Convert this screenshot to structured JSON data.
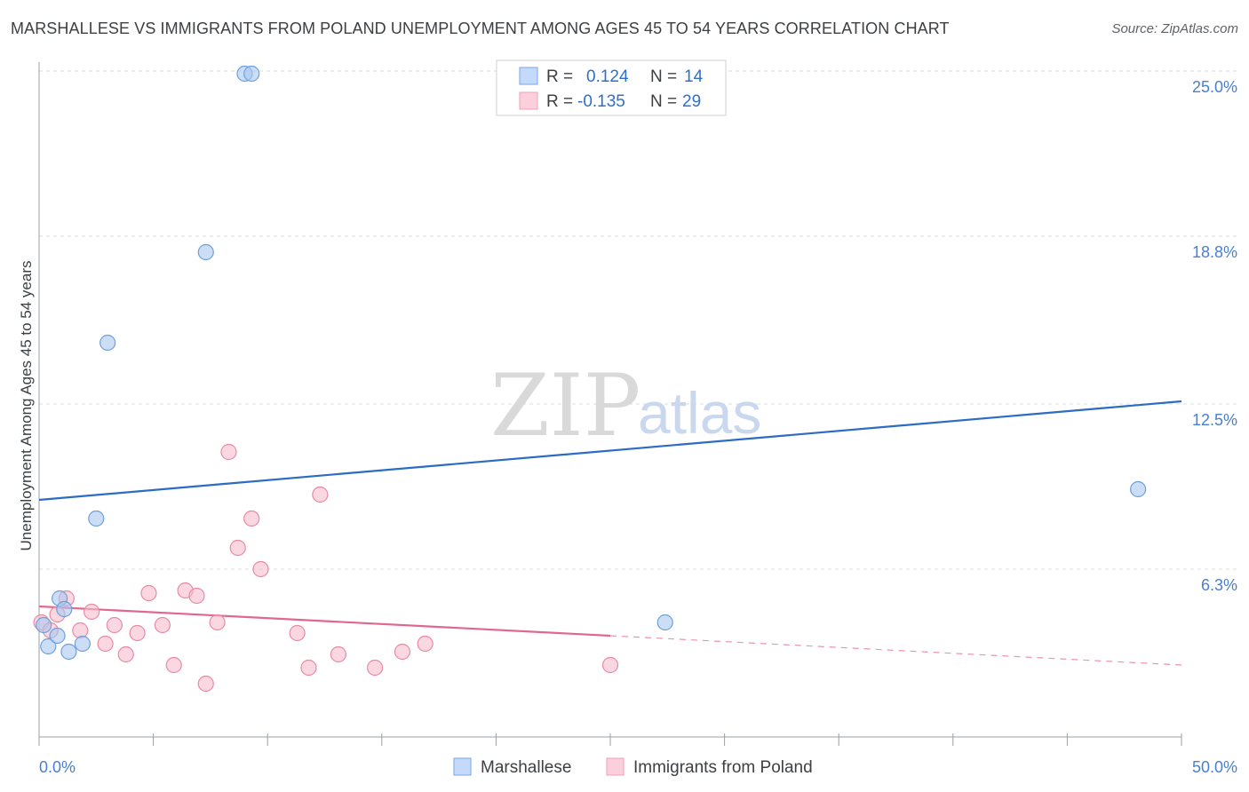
{
  "title": "MARSHALLESE VS IMMIGRANTS FROM POLAND UNEMPLOYMENT AMONG AGES 45 TO 54 YEARS CORRELATION CHART",
  "source": "Source: ZipAtlas.com",
  "watermark": {
    "part1": "ZIP",
    "part2": "atlas"
  },
  "legend": {
    "r_label": "R =",
    "n_label": "N =",
    "rows": [
      {
        "r": "0.124",
        "n": "14"
      },
      {
        "r": "-0.135",
        "n": "29"
      }
    ]
  },
  "chart_data": {
    "type": "scatter",
    "title": "MARSHALLESE VS IMMIGRANTS FROM POLAND UNEMPLOYMENT AMONG AGES 45 TO 54 YEARS CORRELATION CHART",
    "xlabel": "",
    "ylabel": "Unemployment Among Ages 45 to 54 years",
    "xlim": [
      0,
      50
    ],
    "ylim": [
      0,
      25
    ],
    "x_tick_labels": [
      "0.0%",
      "50.0%"
    ],
    "y_ticks": [
      6.3,
      12.5,
      18.8,
      25.0
    ],
    "y_tick_labels": [
      "6.3%",
      "12.5%",
      "18.8%",
      "25.0%"
    ],
    "grid": true,
    "legend_position": "top-center",
    "series": [
      {
        "name": "Marshallese",
        "color": "#a8c8f0",
        "stroke": "#6f9fd8",
        "trend_color": "#2b6cc4",
        "r": 0.124,
        "n": 14,
        "trend": {
          "x": [
            0,
            50
          ],
          "y": [
            8.9,
            12.6
          ]
        },
        "points": [
          {
            "x": 0.2,
            "y": 4.2
          },
          {
            "x": 0.4,
            "y": 3.4
          },
          {
            "x": 0.8,
            "y": 3.8
          },
          {
            "x": 0.9,
            "y": 5.2
          },
          {
            "x": 1.1,
            "y": 4.8
          },
          {
            "x": 1.3,
            "y": 3.2
          },
          {
            "x": 1.9,
            "y": 3.5
          },
          {
            "x": 2.5,
            "y": 8.2
          },
          {
            "x": 3.0,
            "y": 14.8
          },
          {
            "x": 7.3,
            "y": 18.2
          },
          {
            "x": 9.0,
            "y": 24.9
          },
          {
            "x": 9.3,
            "y": 24.9
          },
          {
            "x": 27.4,
            "y": 4.3
          },
          {
            "x": 48.1,
            "y": 9.3
          }
        ]
      },
      {
        "name": "Immigrants from Poland",
        "color": "#f7bccd",
        "stroke": "#e88aa6",
        "trend_color": "#e06890",
        "r": -0.135,
        "n": 29,
        "trend": {
          "x": [
            0,
            25
          ],
          "y": [
            4.9,
            3.8
          ]
        },
        "trend_dashed": {
          "x": [
            25,
            50
          ],
          "y": [
            3.8,
            2.7
          ]
        },
        "points": [
          {
            "x": 0.1,
            "y": 4.3
          },
          {
            "x": 0.5,
            "y": 4.0
          },
          {
            "x": 0.8,
            "y": 4.6
          },
          {
            "x": 1.2,
            "y": 5.2
          },
          {
            "x": 1.8,
            "y": 4.0
          },
          {
            "x": 2.3,
            "y": 4.7
          },
          {
            "x": 2.9,
            "y": 3.5
          },
          {
            "x": 3.3,
            "y": 4.2
          },
          {
            "x": 3.8,
            "y": 3.1
          },
          {
            "x": 4.3,
            "y": 3.9
          },
          {
            "x": 4.8,
            "y": 5.4
          },
          {
            "x": 5.4,
            "y": 4.2
          },
          {
            "x": 5.9,
            "y": 2.7
          },
          {
            "x": 6.4,
            "y": 5.5
          },
          {
            "x": 6.9,
            "y": 5.3
          },
          {
            "x": 7.3,
            "y": 2.0
          },
          {
            "x": 7.8,
            "y": 4.3
          },
          {
            "x": 8.3,
            "y": 10.7
          },
          {
            "x": 8.7,
            "y": 7.1
          },
          {
            "x": 9.3,
            "y": 8.2
          },
          {
            "x": 9.7,
            "y": 6.3
          },
          {
            "x": 11.3,
            "y": 3.9
          },
          {
            "x": 11.8,
            "y": 2.6
          },
          {
            "x": 12.3,
            "y": 9.1
          },
          {
            "x": 13.1,
            "y": 3.1
          },
          {
            "x": 14.7,
            "y": 2.6
          },
          {
            "x": 15.9,
            "y": 3.2
          },
          {
            "x": 16.9,
            "y": 3.5
          },
          {
            "x": 25.0,
            "y": 2.7
          }
        ]
      }
    ]
  }
}
